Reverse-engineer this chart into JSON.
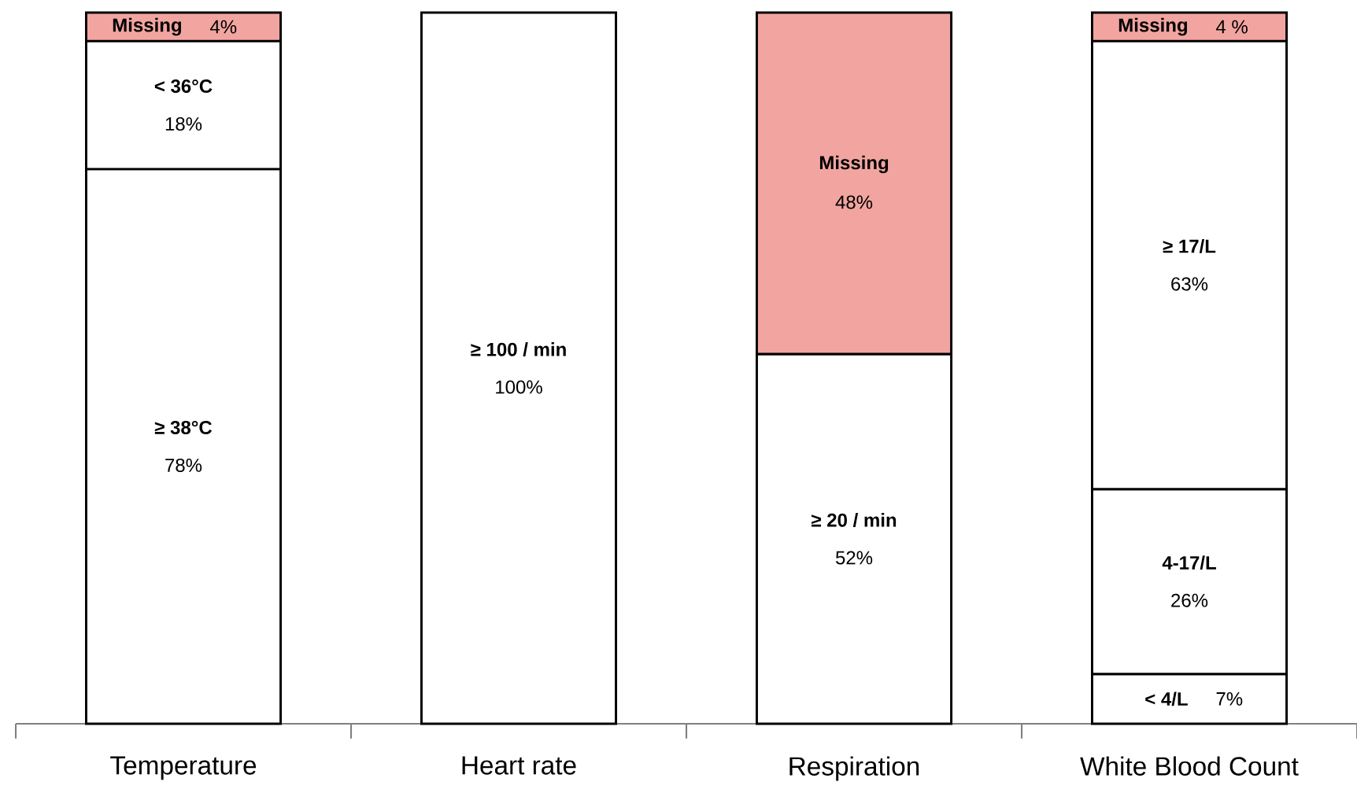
{
  "chart_data": {
    "type": "bar",
    "stacked": true,
    "categories": [
      "Temperature",
      "Heart rate",
      "Respiration",
      "White Blood Count"
    ],
    "series": [
      {
        "colors": [
          "#ffffff",
          "#ffffff",
          "#ffffff",
          "#ffffff"
        ],
        "values": [
          78,
          100,
          52,
          7
        ],
        "value_labels": [
          "78%",
          "100%",
          "52%",
          "7%"
        ]
      },
      {
        "colors": [
          "#ffffff",
          null,
          "#f2a5a0",
          "#ffffff"
        ],
        "values": [
          18,
          null,
          48,
          26
        ],
        "value_labels": [
          "18%",
          null,
          "48%",
          "26%"
        ]
      },
      {
        "colors": [
          "#f2a5a0",
          null,
          null,
          "#ffffff"
        ],
        "values": [
          4,
          null,
          null,
          63
        ],
        "value_labels": [
          "4%",
          null,
          null,
          "63%"
        ]
      },
      {
        "colors": [
          null,
          null,
          null,
          "#f2a5a0"
        ],
        "values": [
          null,
          null,
          null,
          4
        ],
        "value_labels": [
          null,
          null,
          null,
          "4 %"
        ]
      }
    ],
    "annotations": [
      "≥ 38°C",
      "≥ 100 / min",
      "≥ 20 / min",
      "< 4/L",
      "< 36°C",
      "Missing",
      "4-17/L",
      "Missing",
      "≥ 17/L",
      "Missing"
    ]
  }
}
